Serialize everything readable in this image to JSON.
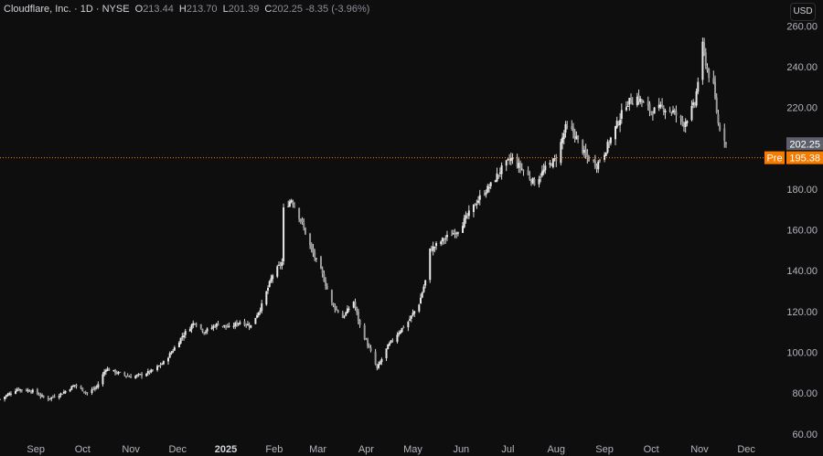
{
  "legend": {
    "title": "Cloudflare, Inc. · 1D · NYSE",
    "open_label": "O",
    "open": "213.44",
    "high_label": "H",
    "high": "213.70",
    "low_label": "L",
    "low": "201.39",
    "close_label": "C",
    "close": "202.25",
    "change": "-8.35 (-3.96%)"
  },
  "currency": "USD",
  "colors": {
    "background": "#0e0e0e",
    "candle": "#d8d8d8",
    "price_tag": "#5d606b",
    "pre_tag": "#f57c00",
    "pre_line": "#f57c00"
  },
  "chart_data": {
    "type": "candlestick",
    "y_ticks": [
      "60.00",
      "80.00",
      "100.00",
      "120.00",
      "140.00",
      "160.00",
      "180.00",
      "220.00",
      "240.00",
      "260.00"
    ],
    "ylim": [
      55,
      270
    ],
    "x_ticks": [
      {
        "label": "Sep",
        "date": "2024-09-01",
        "bold": false
      },
      {
        "label": "Oct",
        "date": "2024-10-01",
        "bold": false
      },
      {
        "label": "Nov",
        "date": "2024-11-01",
        "bold": false
      },
      {
        "label": "Dec",
        "date": "2024-12-01",
        "bold": false
      },
      {
        "label": "2025",
        "date": "2025-01-01",
        "bold": true
      },
      {
        "label": "Feb",
        "date": "2025-02-01",
        "bold": false
      },
      {
        "label": "Mar",
        "date": "2025-03-01",
        "bold": false
      },
      {
        "label": "Apr",
        "date": "2025-04-01",
        "bold": false
      },
      {
        "label": "May",
        "date": "2025-05-01",
        "bold": false
      },
      {
        "label": "Jun",
        "date": "2025-06-01",
        "bold": false
      },
      {
        "label": "Jul",
        "date": "2025-07-01",
        "bold": false
      },
      {
        "label": "Aug",
        "date": "2025-08-01",
        "bold": false
      },
      {
        "label": "Sep",
        "date": "2025-09-01",
        "bold": false
      },
      {
        "label": "Oct",
        "date": "2025-10-01",
        "bold": false
      },
      {
        "label": "Nov",
        "date": "2025-11-01",
        "bold": false
      },
      {
        "label": "Dec",
        "date": "2025-12-01",
        "bold": false
      }
    ],
    "x_range": [
      "2024-08-09",
      "2025-12-25"
    ],
    "last_price": {
      "value": 202.25,
      "label": "202.25"
    },
    "premarket": {
      "tag": "Pre",
      "value": 195.38,
      "label": "195.38"
    },
    "close_path": [
      [
        "2024-08-09",
        77
      ],
      [
        "2024-08-20",
        82
      ],
      [
        "2024-08-30",
        81
      ],
      [
        "2024-09-08",
        77
      ],
      [
        "2024-09-18",
        80
      ],
      [
        "2024-09-26",
        84
      ],
      [
        "2024-10-04",
        80
      ],
      [
        "2024-10-10",
        83
      ],
      [
        "2024-10-16",
        92
      ],
      [
        "2024-10-23",
        90
      ],
      [
        "2024-11-01",
        88
      ],
      [
        "2024-11-08",
        89
      ],
      [
        "2024-11-15",
        91
      ],
      [
        "2024-11-22",
        95
      ],
      [
        "2024-11-27",
        100
      ],
      [
        "2024-12-04",
        108
      ],
      [
        "2024-12-12",
        115
      ],
      [
        "2024-12-18",
        110
      ],
      [
        "2024-12-27",
        114
      ],
      [
        "2025-01-03",
        112
      ],
      [
        "2025-01-10",
        115
      ],
      [
        "2025-01-17",
        113
      ],
      [
        "2025-01-24",
        123
      ],
      [
        "2025-01-31",
        138
      ],
      [
        "2025-02-06",
        144
      ],
      [
        "2025-02-07",
        170
      ],
      [
        "2025-02-12",
        175
      ],
      [
        "2025-02-18",
        165
      ],
      [
        "2025-02-25",
        150
      ],
      [
        "2025-03-04",
        138
      ],
      [
        "2025-03-10",
        124
      ],
      [
        "2025-03-17",
        117
      ],
      [
        "2025-03-24",
        125
      ],
      [
        "2025-03-28",
        113
      ],
      [
        "2025-04-04",
        100
      ],
      [
        "2025-04-08",
        92
      ],
      [
        "2025-04-15",
        103
      ],
      [
        "2025-04-22",
        110
      ],
      [
        "2025-04-28",
        115
      ],
      [
        "2025-05-05",
        124
      ],
      [
        "2025-05-09",
        135
      ],
      [
        "2025-05-12",
        150
      ],
      [
        "2025-05-20",
        155
      ],
      [
        "2025-05-30",
        160
      ],
      [
        "2025-06-06",
        168
      ],
      [
        "2025-06-13",
        176
      ],
      [
        "2025-06-20",
        182
      ],
      [
        "2025-06-27",
        190
      ],
      [
        "2025-07-03",
        195
      ],
      [
        "2025-07-10",
        190
      ],
      [
        "2025-07-18",
        183
      ],
      [
        "2025-07-25",
        190
      ],
      [
        "2025-08-01",
        195
      ],
      [
        "2025-08-07",
        210
      ],
      [
        "2025-08-12",
        208
      ],
      [
        "2025-08-20",
        196
      ],
      [
        "2025-08-27",
        192
      ],
      [
        "2025-09-01",
        198
      ],
      [
        "2025-09-08",
        210
      ],
      [
        "2025-09-15",
        222
      ],
      [
        "2025-09-22",
        225
      ],
      [
        "2025-10-01",
        218
      ],
      [
        "2025-10-08",
        220
      ],
      [
        "2025-10-15",
        218
      ],
      [
        "2025-10-22",
        212
      ],
      [
        "2025-10-29",
        222
      ],
      [
        "2025-11-03",
        250
      ],
      [
        "2025-11-06",
        238
      ],
      [
        "2025-11-10",
        230
      ],
      [
        "2025-11-13",
        212
      ],
      [
        "2025-11-17",
        205
      ],
      [
        "2025-11-18",
        202
      ]
    ]
  }
}
